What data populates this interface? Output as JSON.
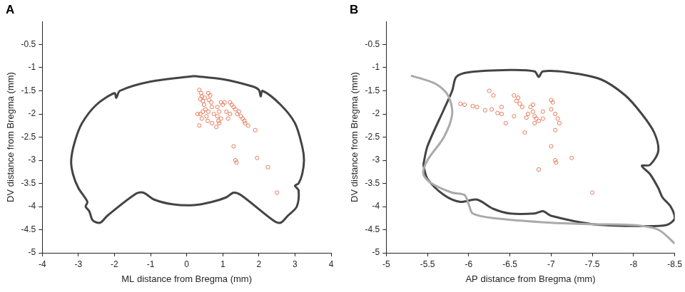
{
  "chart_data": [
    {
      "type": "scatter",
      "panel": "A",
      "xlabel": "ML distance from Bregma (mm)",
      "ylabel": "DV distance from Bregma (mm)",
      "xlim": [
        -4,
        4
      ],
      "xticks": [
        -4,
        -3,
        -2,
        -1,
        0,
        1,
        2,
        3,
        4
      ],
      "ylim": [
        -5,
        0
      ],
      "yticks": [
        -5,
        -4.5,
        -4,
        -3.5,
        -3,
        -2.5,
        -2,
        -1.5,
        -1,
        -0.5
      ],
      "grid": false,
      "series": [
        {
          "type": "line",
          "color": "#444444",
          "line_style": "solid",
          "x": [
            0.2,
            1.0,
            1.8,
            2.0,
            2.05,
            2.1,
            2.6,
            3.0,
            3.2,
            3.25,
            3.2,
            3.1,
            3.0,
            3.1,
            3.05,
            2.8,
            2.6,
            2.4,
            1.5,
            1.3,
            1.1,
            0.7,
            0.2,
            -0.4,
            -0.9,
            -1.2,
            -1.4,
            -2.2,
            -2.4,
            -2.6,
            -2.7,
            -2.8,
            -2.75,
            -3.0,
            -3.15,
            -3.2,
            -3.1,
            -2.9,
            -2.5,
            -2.0,
            -1.95,
            -1.85,
            -1.0,
            0.2
          ],
          "values": [
            -1.18,
            -1.25,
            -1.4,
            -1.48,
            -1.62,
            -1.5,
            -1.8,
            -2.2,
            -2.7,
            -3.0,
            -3.3,
            -3.5,
            -3.55,
            -3.65,
            -4.0,
            -4.2,
            -4.35,
            -4.3,
            -3.75,
            -3.7,
            -3.8,
            -3.9,
            -3.97,
            -3.95,
            -3.85,
            -3.7,
            -3.72,
            -4.2,
            -4.35,
            -4.3,
            -4.1,
            -4.0,
            -3.9,
            -3.6,
            -3.3,
            -3.0,
            -2.6,
            -2.2,
            -1.8,
            -1.55,
            -1.65,
            -1.5,
            -1.3,
            -1.18
          ]
        },
        {
          "type": "scatter",
          "color": "#e8795a",
          "marker": "circle-open",
          "x": [
            0.35,
            0.4,
            0.42,
            0.38,
            0.45,
            0.5,
            0.48,
            0.52,
            0.45,
            0.38,
            0.3,
            0.42,
            0.6,
            0.65,
            0.62,
            0.68,
            0.7,
            0.6,
            0.55,
            0.58,
            0.35,
            0.7,
            0.75,
            0.85,
            0.9,
            0.85,
            0.95,
            0.9,
            1.0,
            1.05,
            0.95,
            0.82,
            1.2,
            1.25,
            1.3,
            1.35,
            1.4,
            1.1,
            1.15,
            1.2,
            1.5,
            1.55,
            1.6,
            1.45,
            1.7,
            1.9,
            1.3,
            1.35,
            1.38,
            1.95,
            2.25,
            2.5,
            0.88,
            1.62
          ],
          "values": [
            -1.48,
            -1.55,
            -1.62,
            -1.68,
            -1.72,
            -1.65,
            -1.8,
            -1.9,
            -1.95,
            -2.0,
            -2.0,
            -2.1,
            -1.55,
            -1.6,
            -1.7,
            -1.75,
            -1.85,
            -1.95,
            -2.05,
            -2.15,
            -2.25,
            -2.2,
            -2.0,
            -1.85,
            -1.95,
            -2.05,
            -2.1,
            -2.2,
            -1.8,
            -1.75,
            -1.75,
            -2.28,
            -1.75,
            -1.8,
            -1.85,
            -1.9,
            -2.0,
            -1.95,
            -2.1,
            -2.0,
            -2.05,
            -2.1,
            -2.15,
            -1.95,
            -2.25,
            -2.35,
            -2.7,
            -3.0,
            -3.05,
            -2.95,
            -3.15,
            -3.7,
            -2.15,
            -2.2
          ]
        }
      ]
    },
    {
      "type": "scatter",
      "panel": "B",
      "xlabel": "AP distance from Bregma (mm)",
      "ylabel": "DV distance from Bregma (mm)",
      "xlim": [
        -5,
        -8.5
      ],
      "xticks": [
        -5,
        -5.5,
        -6,
        -6.5,
        -7,
        -7.5,
        -8,
        -8.5
      ],
      "ylim": [
        -5,
        0
      ],
      "yticks": [
        -5,
        -4.5,
        -4,
        -3.5,
        -3,
        -2.5,
        -2,
        -1.5,
        -1,
        -0.5
      ],
      "grid": false,
      "series": [
        {
          "type": "line",
          "color": "#aaaaaa",
          "line_style": "solid",
          "x": [
            -5.3,
            -5.6,
            -5.75,
            -5.8,
            -5.7,
            -5.5,
            -5.45,
            -5.55,
            -5.8,
            -5.95,
            -6.0,
            -6.05,
            -6.3,
            -7.0,
            -7.5,
            -8.0,
            -8.3,
            -8.5
          ],
          "values": [
            -1.17,
            -1.35,
            -1.6,
            -2.0,
            -2.5,
            -3.0,
            -3.3,
            -3.5,
            -3.7,
            -3.75,
            -3.95,
            -4.15,
            -4.25,
            -4.35,
            -4.38,
            -4.4,
            -4.5,
            -4.8
          ]
        },
        {
          "type": "line",
          "color": "#444444",
          "line_style": "solid",
          "x": [
            -5.45,
            -5.5,
            -5.7,
            -5.8,
            -5.85,
            -6.0,
            -6.5,
            -6.8,
            -6.85,
            -6.9,
            -7.2,
            -7.6,
            -7.9,
            -8.1,
            -8.25,
            -8.3,
            -8.2,
            -8.1,
            -8.2,
            -8.3,
            -8.35,
            -8.45,
            -8.5,
            -8.4,
            -8.0,
            -7.5,
            -7.0,
            -6.9,
            -6.8,
            -6.5,
            -6.3,
            -6.1,
            -5.9,
            -5.7,
            -5.5,
            -5.45
          ],
          "values": [
            -3.1,
            -2.7,
            -1.9,
            -1.5,
            -1.2,
            -1.1,
            -1.05,
            -1.08,
            -1.2,
            -1.08,
            -1.1,
            -1.25,
            -1.6,
            -2.0,
            -2.4,
            -2.8,
            -3.1,
            -3.12,
            -3.3,
            -3.6,
            -3.8,
            -4.0,
            -4.25,
            -4.4,
            -4.42,
            -4.38,
            -4.2,
            -4.1,
            -4.15,
            -4.15,
            -4.05,
            -3.85,
            -3.9,
            -3.75,
            -3.4,
            -3.1
          ]
        },
        {
          "type": "scatter",
          "color": "#e8795a",
          "marker": "circle-open",
          "x": [
            -5.9,
            -5.95,
            -6.05,
            -6.1,
            -6.2,
            -6.25,
            -6.3,
            -6.28,
            -6.35,
            -6.4,
            -6.45,
            -6.4,
            -6.55,
            -6.6,
            -6.58,
            -6.62,
            -6.65,
            -6.55,
            -6.68,
            -6.75,
            -6.78,
            -6.8,
            -6.82,
            -6.85,
            -6.8,
            -6.78,
            -6.72,
            -6.85,
            -7.0,
            -7.02,
            -7.0,
            -7.05,
            -7.08,
            -7.1,
            -7.05,
            -7.0,
            -7.05,
            -7.06,
            -7.25,
            -7.5,
            -6.9,
            -6.7,
            -6.9
          ],
          "values": [
            -1.78,
            -1.8,
            -1.83,
            -1.85,
            -1.92,
            -1.5,
            -1.6,
            -1.9,
            -1.98,
            -2.0,
            -2.2,
            -1.85,
            -1.6,
            -1.65,
            -1.72,
            -1.78,
            -1.85,
            -2.05,
            -2.4,
            -1.85,
            -1.95,
            -2.05,
            -2.1,
            -2.15,
            -2.2,
            -1.8,
            -2.0,
            -3.2,
            -1.7,
            -1.75,
            -1.9,
            -2.0,
            -2.1,
            -2.2,
            -2.35,
            -2.7,
            -3.0,
            -3.05,
            -2.95,
            -3.7,
            -2.1,
            -2.08,
            -1.95
          ]
        }
      ]
    }
  ]
}
